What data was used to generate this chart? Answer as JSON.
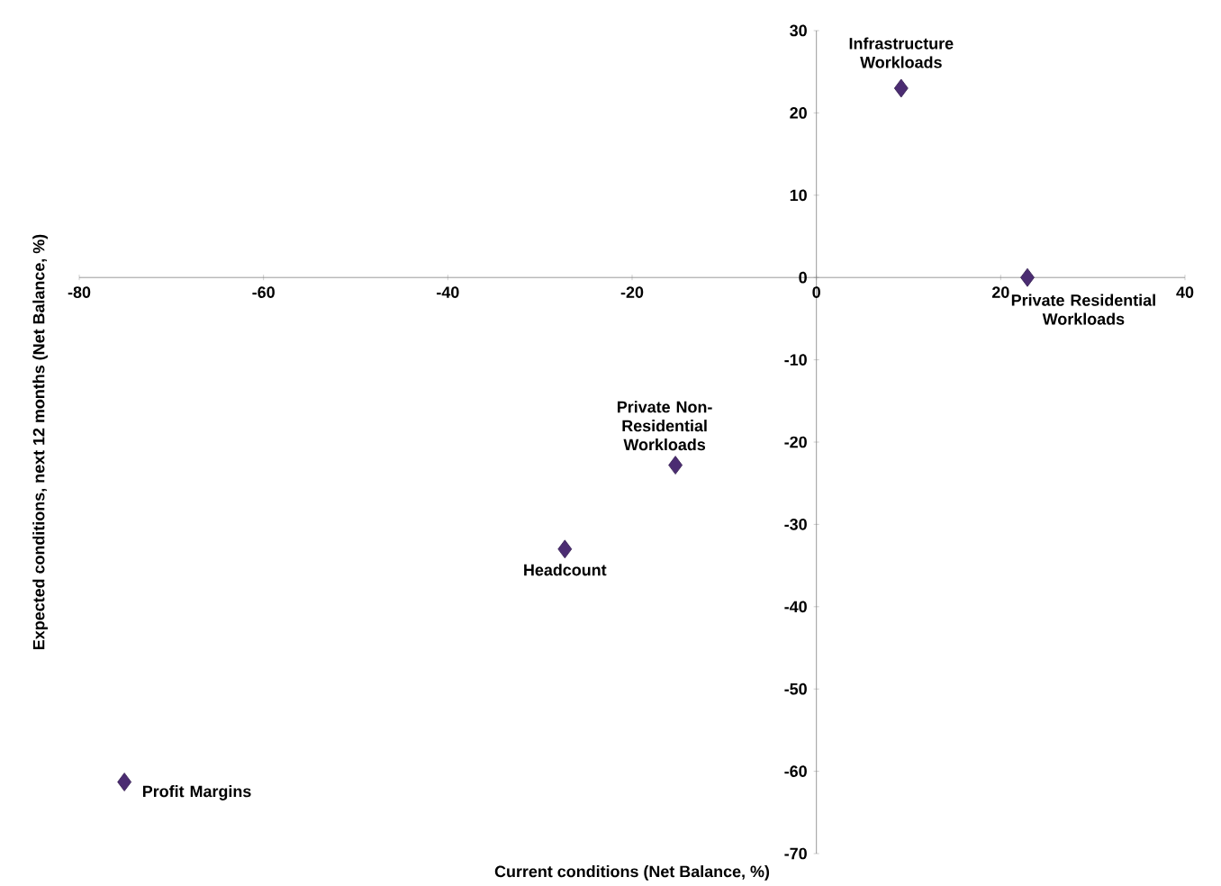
{
  "chart_data": {
    "type": "scatter",
    "xlabel": "Current conditions (Net Balance, %)",
    "ylabel": "Expected conditions, next 12 months (Net Balance, %)",
    "x": [
      9.2,
      22.9,
      -15.3,
      -27.3,
      -75.1
    ],
    "values": [
      23,
      0,
      -22.8,
      -33,
      -61.3
    ],
    "color": "#4b2c72",
    "marker": "diamond",
    "xlim": [
      -80,
      40
    ],
    "ylim": [
      -70,
      30
    ],
    "xticks": [
      -80,
      -60,
      -40,
      -20,
      0,
      20,
      40
    ],
    "yticks": [
      -70,
      -60,
      -50,
      -40,
      -30,
      -20,
      -10,
      0,
      10,
      20,
      30
    ],
    "annotations": [
      {
        "text": "Infrastructure Workloads",
        "x": 9.2,
        "y": 23
      },
      {
        "text": "Private Residential Workloads",
        "x": 22.9,
        "y": 0
      },
      {
        "text": "Private Non-Residential Workloads",
        "x": -15.3,
        "y": -22.8
      },
      {
        "text": "Headcount",
        "x": -27.3,
        "y": -33
      },
      {
        "text": "Profit Margins",
        "x": -75.1,
        "y": -61.3
      }
    ]
  }
}
